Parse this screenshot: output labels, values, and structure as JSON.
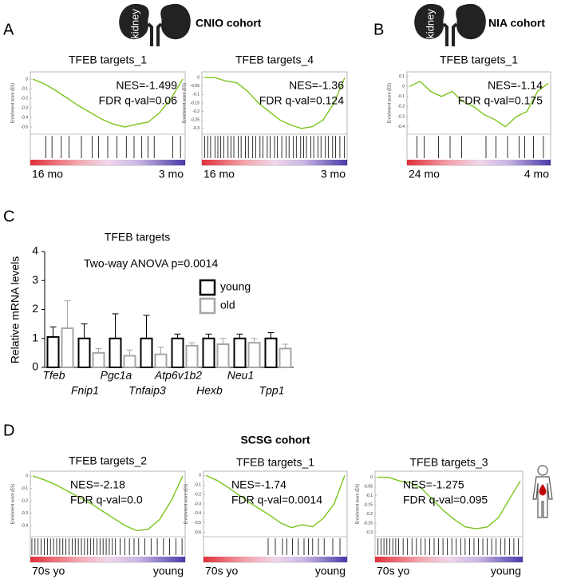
{
  "panels": [
    {
      "label": "A",
      "cohort": "CNIO cohort",
      "icon_text": "kidney",
      "plots": [
        {
          "title": "TFEB targets_1",
          "nes": "NES=-1.499",
          "fdr": "FDR q-val=0.06",
          "ylabel": "Enrichment score (ES)",
          "left": "16 mo",
          "right": "3 mo",
          "ylim": [
            -0.55,
            0.05
          ],
          "yticks": [
            0,
            -0.1,
            -0.2,
            -0.3,
            -0.4,
            -0.5
          ],
          "es": [
            0,
            -0.05,
            -0.12,
            -0.2,
            -0.28,
            -0.35,
            -0.42,
            -0.47,
            -0.5,
            -0.47,
            -0.45,
            -0.35,
            -0.2,
            0
          ],
          "hits": [
            0.1,
            0.14,
            0.2,
            0.25,
            0.33,
            0.4,
            0.44,
            0.5,
            0.56,
            0.62,
            0.67,
            0.72,
            0.76,
            0.8,
            0.92,
            0.97
          ]
        },
        {
          "title": "TFEB targets_4",
          "nes": "NES=-1.36",
          "fdr": "FDR q-val=0.124",
          "ylabel": "Enrichment score (ES)",
          "left": "16 mo",
          "right": "3 mo",
          "ylim": [
            -0.32,
            0.02
          ],
          "yticks": [
            0,
            -0.05,
            -0.1,
            -0.15,
            -0.2,
            -0.25,
            -0.3
          ],
          "es": [
            0,
            0,
            -0.02,
            -0.03,
            -0.08,
            -0.15,
            -0.2,
            -0.25,
            -0.28,
            -0.3,
            -0.29,
            -0.25,
            -0.15,
            0
          ],
          "hits": [
            0.02,
            0.04,
            0.06,
            0.09,
            0.11,
            0.13,
            0.15,
            0.18,
            0.2,
            0.22,
            0.25,
            0.27,
            0.3,
            0.32,
            0.35,
            0.37,
            0.4,
            0.42,
            0.45,
            0.47,
            0.5,
            0.52,
            0.55,
            0.58,
            0.6,
            0.63,
            0.65,
            0.68,
            0.7,
            0.72,
            0.75,
            0.77,
            0.8,
            0.82,
            0.85,
            0.87,
            0.9,
            0.92,
            0.95,
            0.98
          ]
        }
      ]
    },
    {
      "label": "B",
      "cohort": "NIA cohort",
      "icon_text": "kidney",
      "plots": [
        {
          "title": "TFEB targets_1",
          "nes": "NES=-1.14",
          "fdr": "FDR q-val=0.175",
          "ylabel": "Enrichment score (ES)",
          "left": "24 mo",
          "right": "4 mo",
          "ylim": [
            -0.45,
            0.12
          ],
          "yticks": [
            0.1,
            0,
            -0.1,
            -0.2,
            -0.3,
            -0.4
          ],
          "es": [
            0,
            0.05,
            -0.05,
            -0.1,
            -0.05,
            -0.15,
            -0.2,
            -0.28,
            -0.33,
            -0.4,
            -0.3,
            -0.25,
            -0.05,
            0.03
          ],
          "hits": [
            0.07,
            0.12,
            0.22,
            0.3,
            0.38,
            0.55,
            0.62,
            0.7,
            0.78,
            0.82,
            0.88,
            0.95
          ]
        }
      ]
    },
    {
      "label": "C",
      "chart_data": {
        "type": "bar",
        "title": "TFEB targets",
        "annotation": "Two-way ANOVA p=0.0014",
        "ylabel": "Relative mRNA levels",
        "categories": [
          "Tfeb",
          "Fnip1",
          "Pgc1a",
          "Tnfaip3",
          "Atp6v1b2",
          "Hexb",
          "Neu1",
          "Tpp1"
        ],
        "series": [
          {
            "name": "young",
            "color": "#000000",
            "values": [
              1.05,
              1.0,
              1.0,
              1.0,
              1.0,
              1.0,
              1.0,
              1.0
            ],
            "errors": [
              0.35,
              0.5,
              0.85,
              0.8,
              0.15,
              0.15,
              0.15,
              0.2
            ]
          },
          {
            "name": "old",
            "color": "#a6a6a6",
            "values": [
              1.35,
              0.5,
              0.4,
              0.45,
              0.75,
              0.8,
              0.85,
              0.65
            ],
            "errors": [
              0.95,
              0.15,
              0.2,
              0.25,
              0.1,
              0.2,
              0.15,
              0.15
            ]
          }
        ],
        "ylim": [
          0,
          4
        ],
        "yticks": [
          0,
          1,
          2,
          3,
          4
        ]
      }
    },
    {
      "label": "D",
      "cohort": "SCSG cohort",
      "plots": [
        {
          "title": "TFEB targets_2",
          "nes": "NES=-2.18",
          "fdr": "FDR q-val=0.0",
          "ylabel": "Enrichment score (ES)",
          "left": "70s yo",
          "right": "young",
          "ylim": [
            -0.47,
            0.02
          ],
          "yticks": [
            0,
            -0.1,
            -0.2,
            -0.3,
            -0.4
          ],
          "es": [
            0,
            -0.03,
            -0.07,
            -0.12,
            -0.17,
            -0.22,
            -0.28,
            -0.34,
            -0.4,
            -0.44,
            -0.43,
            -0.35,
            -0.2,
            0
          ],
          "hits": [
            0.01,
            0.03,
            0.05,
            0.07,
            0.09,
            0.11,
            0.13,
            0.15,
            0.17,
            0.19,
            0.21,
            0.23,
            0.25,
            0.27,
            0.29,
            0.31,
            0.33,
            0.35,
            0.37,
            0.39,
            0.41,
            0.43,
            0.45,
            0.47,
            0.49,
            0.51,
            0.53,
            0.55,
            0.58,
            0.61,
            0.64,
            0.67,
            0.7,
            0.74,
            0.78,
            0.82,
            0.86,
            0.9,
            0.94,
            0.98
          ]
        },
        {
          "title": "TFEB targets_1",
          "nes": "NES=-1.74",
          "fdr": "FDR q-val=0.0014",
          "ylabel": "Enrichment score (ES)",
          "left": "70s yo",
          "right": "young",
          "ylim": [
            -0.62,
            0.02
          ],
          "yticks": [
            0,
            -0.1,
            -0.2,
            -0.3,
            -0.4,
            -0.5,
            -0.6
          ],
          "es": [
            0,
            -0.05,
            -0.12,
            -0.2,
            -0.28,
            -0.35,
            -0.42,
            -0.5,
            -0.55,
            -0.52,
            -0.54,
            -0.45,
            -0.3,
            0
          ],
          "hits": [
            0.45,
            0.5,
            0.55,
            0.58,
            0.62,
            0.66,
            0.7,
            0.73,
            0.76,
            0.8,
            0.84,
            0.9,
            0.95
          ]
        },
        {
          "title": "TFEB targets_3",
          "nes": "NES=-1.275",
          "fdr": "FDR q-val=0.095",
          "ylabel": "Enrichment score (ES)",
          "left": "70s yo",
          "right": "young",
          "ylim": [
            -0.31,
            0.02
          ],
          "yticks": [
            0,
            -0.05,
            -0.1,
            -0.15,
            -0.2,
            -0.25,
            -0.3
          ],
          "es": [
            0,
            0,
            -0.02,
            -0.03,
            -0.06,
            -0.12,
            -0.18,
            -0.23,
            -0.27,
            -0.28,
            -0.27,
            -0.22,
            -0.12,
            -0.02
          ],
          "hits": [
            0.02,
            0.04,
            0.06,
            0.08,
            0.1,
            0.12,
            0.14,
            0.16,
            0.19,
            0.22,
            0.25,
            0.28,
            0.31,
            0.34,
            0.37,
            0.4,
            0.43,
            0.46,
            0.49,
            0.52,
            0.55,
            0.58,
            0.61,
            0.64,
            0.67,
            0.7,
            0.73,
            0.76,
            0.79,
            0.82,
            0.85,
            0.88,
            0.91,
            0.94,
            0.97
          ]
        }
      ]
    }
  ]
}
